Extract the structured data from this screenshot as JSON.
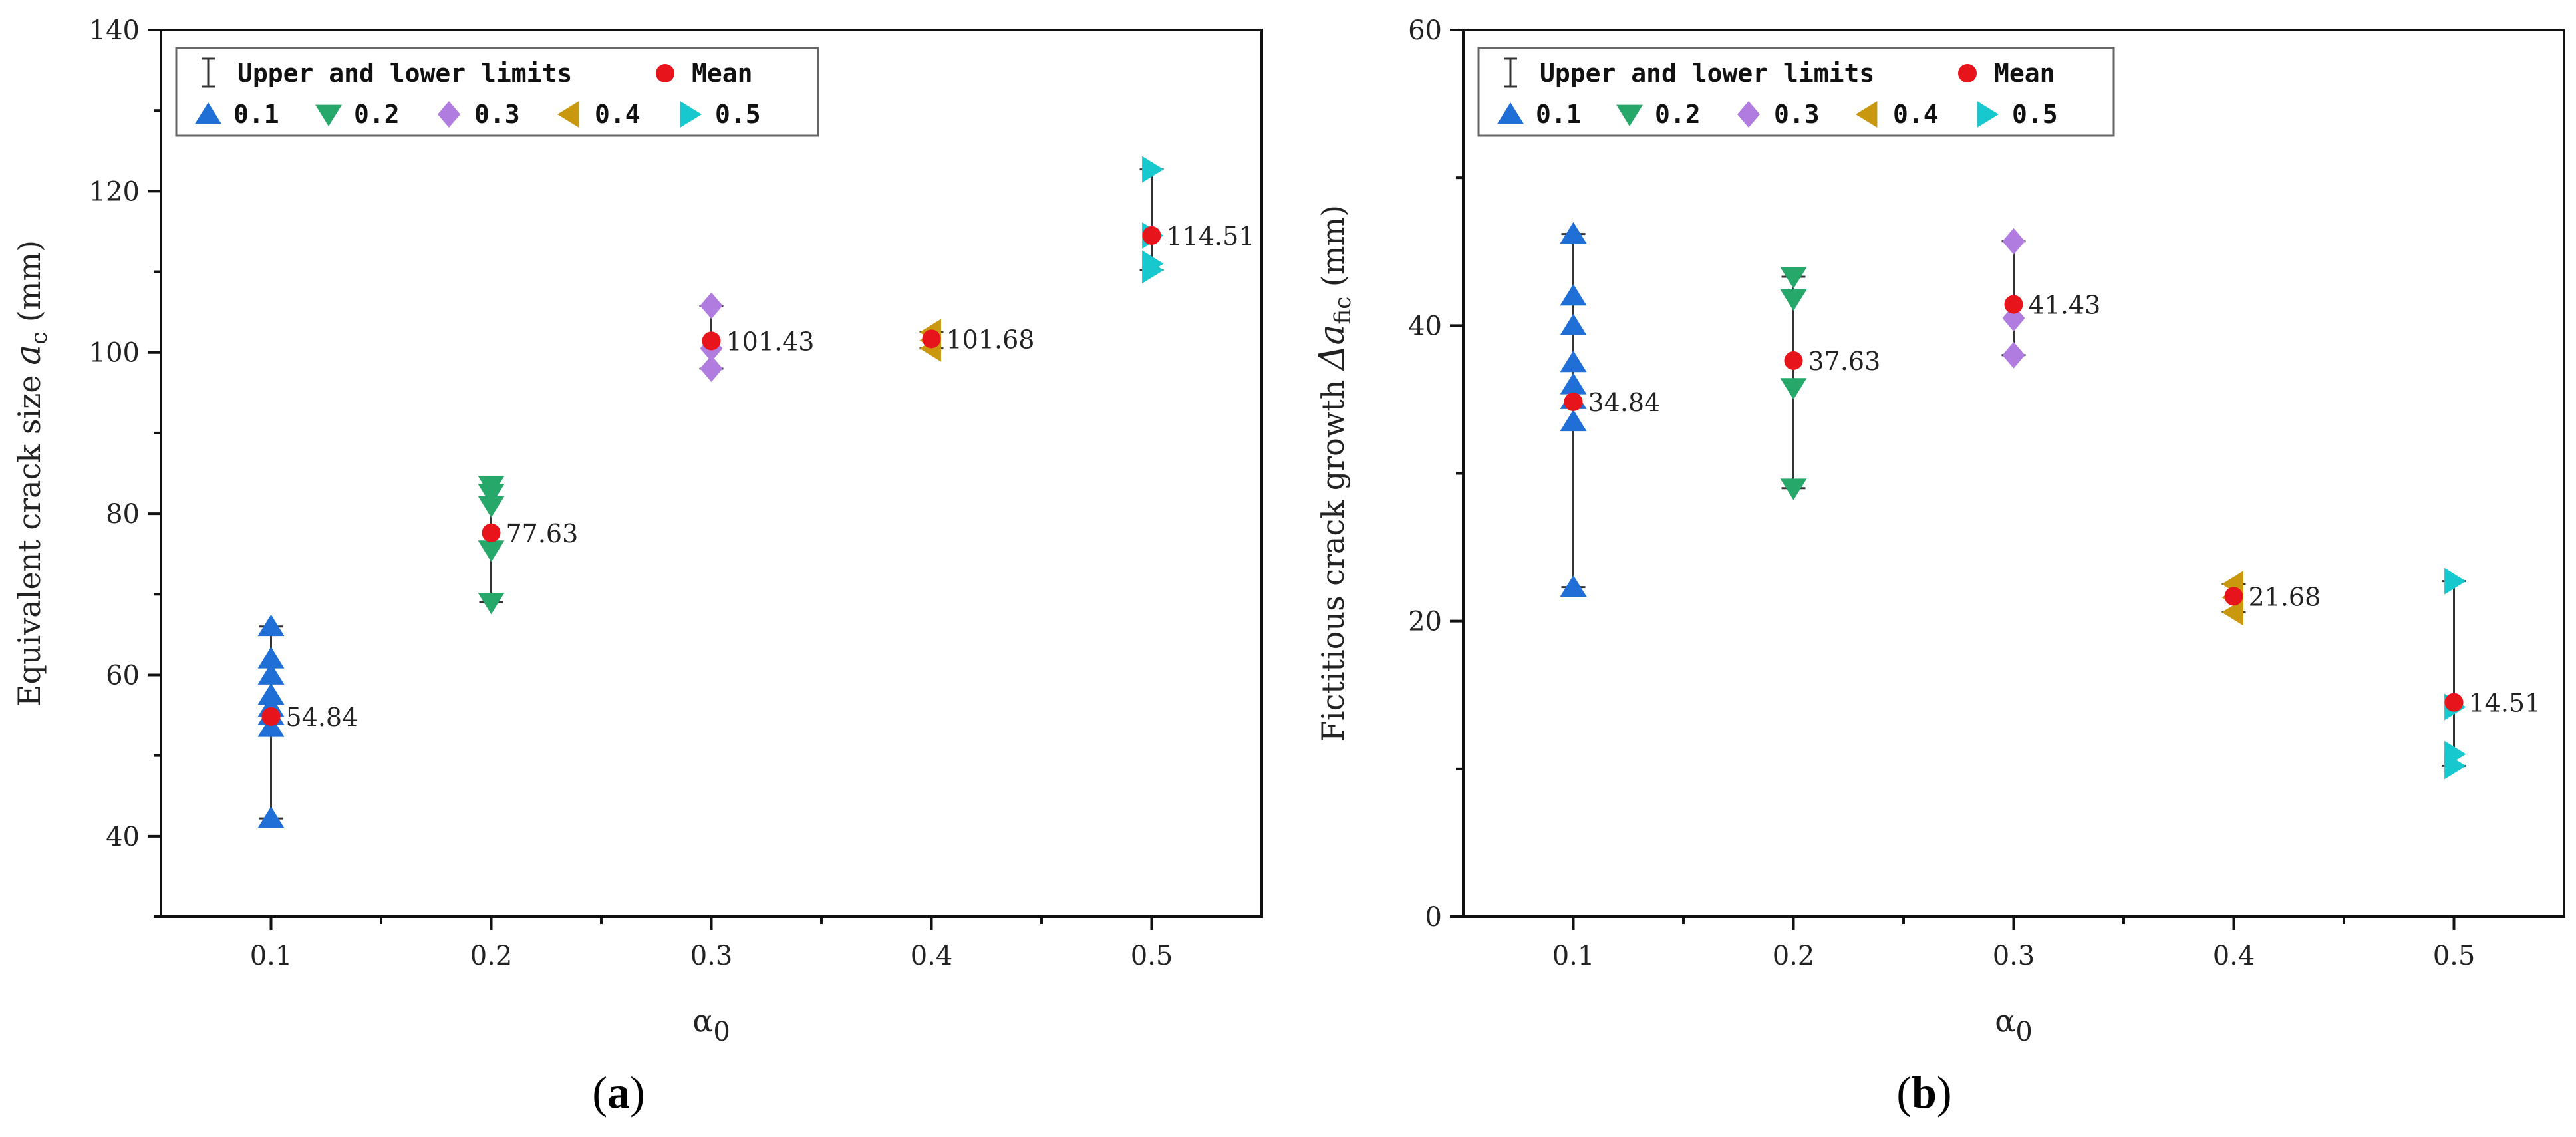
{
  "chart_data": [
    {
      "type": "scatter",
      "panel": "(a)",
      "panel_letter": "a",
      "ylabel": "Equivalent crack size",
      "ylabel_symbol": "a",
      "ylabel_sub": "c",
      "ylabel_unit": "(mm)",
      "xlabel_symbol": "α",
      "xlabel_sub": "0",
      "xlim": [
        0.05,
        0.55
      ],
      "ylim": [
        30,
        140
      ],
      "xticks": [
        0.1,
        0.2,
        0.3,
        0.4,
        0.5
      ],
      "xtick_labels": [
        "0.1",
        "0.2",
        "0.3",
        "0.4",
        "0.5"
      ],
      "yticks": [
        40,
        60,
        80,
        100,
        120,
        140
      ],
      "ytick_labels": [
        "40",
        "60",
        "80",
        "100",
        "120",
        "140"
      ],
      "legend": {
        "range_label": "Upper and lower limits",
        "mean_label": "Mean",
        "series_labels": [
          "0.1",
          "0.2",
          "0.3",
          "0.4",
          "0.5"
        ]
      },
      "series": [
        {
          "name": "0.1",
          "x": 0.1,
          "values": [
            42.2,
            53.5,
            55.0,
            56.0,
            57.5,
            60.0,
            62.0,
            66.0
          ],
          "lower": 42.2,
          "upper": 66.0,
          "mean": 54.84,
          "mean_label": "54.84"
        },
        {
          "name": "0.2",
          "x": 0.2,
          "values": [
            69.0,
            75.5,
            81.0,
            82.5,
            83.5
          ],
          "lower": 69.0,
          "upper": 83.5,
          "mean": 77.63,
          "mean_label": "77.63"
        },
        {
          "name": "0.3",
          "x": 0.3,
          "values": [
            98.0,
            100.5,
            105.8
          ],
          "lower": 98.0,
          "upper": 105.8,
          "mean": 101.43,
          "mean_label": "101.43"
        },
        {
          "name": "0.4",
          "x": 0.4,
          "values": [
            100.5,
            101.5,
            102.5
          ],
          "lower": 100.5,
          "upper": 102.5,
          "mean": 101.68,
          "mean_label": "101.68"
        },
        {
          "name": "0.5",
          "x": 0.5,
          "values": [
            110.2,
            111.0,
            114.5,
            122.7
          ],
          "lower": 110.2,
          "upper": 122.7,
          "mean": 114.51,
          "mean_label": "114.51"
        }
      ]
    },
    {
      "type": "scatter",
      "panel": "(b)",
      "panel_letter": "b",
      "ylabel": "Fictitious crack growth",
      "ylabel_symbol": "Δa",
      "ylabel_sub": "fic",
      "ylabel_unit": "(mm)",
      "xlabel_symbol": "α",
      "xlabel_sub": "0",
      "xlim": [
        0.05,
        0.55
      ],
      "ylim": [
        0,
        60
      ],
      "xticks": [
        0.1,
        0.2,
        0.3,
        0.4,
        0.5
      ],
      "xtick_labels": [
        "0.1",
        "0.2",
        "0.3",
        "0.4",
        "0.5"
      ],
      "yticks": [
        0,
        20,
        40,
        60
      ],
      "ytick_labels": [
        "0",
        "20",
        "40",
        "60"
      ],
      "legend": {
        "range_label": "Upper and lower limits",
        "mean_label": "Mean",
        "series_labels": [
          "0.1",
          "0.2",
          "0.3",
          "0.4",
          "0.5"
        ]
      },
      "series": [
        {
          "name": "0.1",
          "x": 0.1,
          "values": [
            22.3,
            33.5,
            35.0,
            36.0,
            37.5,
            40.0,
            42.0,
            46.2
          ],
          "lower": 22.3,
          "upper": 46.2,
          "mean": 34.84,
          "mean_label": "34.84"
        },
        {
          "name": "0.2",
          "x": 0.2,
          "values": [
            29.0,
            35.8,
            41.8,
            43.3
          ],
          "lower": 29.0,
          "upper": 43.3,
          "mean": 37.63,
          "mean_label": "37.63"
        },
        {
          "name": "0.3",
          "x": 0.3,
          "values": [
            38.0,
            40.5,
            45.7
          ],
          "lower": 38.0,
          "upper": 45.7,
          "mean": 41.43,
          "mean_label": "41.43"
        },
        {
          "name": "0.4",
          "x": 0.4,
          "values": [
            20.6,
            21.6,
            22.5
          ],
          "lower": 20.6,
          "upper": 22.5,
          "mean": 21.68,
          "mean_label": "21.68"
        },
        {
          "name": "0.5",
          "x": 0.5,
          "values": [
            10.2,
            11.0,
            14.2,
            22.7
          ],
          "lower": 10.2,
          "upper": 22.7,
          "mean": 14.51,
          "mean_label": "14.51"
        }
      ]
    }
  ],
  "styles": {
    "mean_color": "#e8141c",
    "range_color": "#333333",
    "series_colors": [
      "#1f6fd6",
      "#27a86b",
      "#b07ce0",
      "#c9980e",
      "#18c8cf"
    ],
    "series_markers": [
      "triangle-up-icon",
      "triangle-down-icon",
      "diamond-icon",
      "triangle-left-icon",
      "triangle-right-icon"
    ]
  }
}
